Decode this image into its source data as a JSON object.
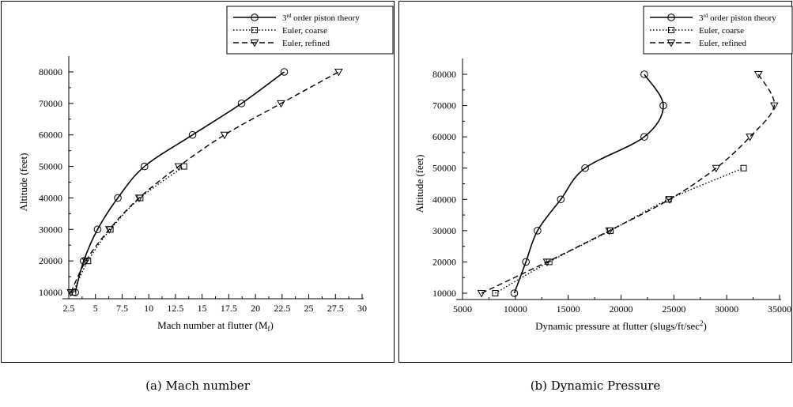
{
  "captions": {
    "a": "(a) Mach number",
    "b": "(b) Dynamic Pressure"
  },
  "chart_data": [
    {
      "type": "line",
      "xlabel": "Mach number at flutter (M",
      "xlabel_sub": "f",
      "xlabel_end": ")",
      "ylabel": "Altitude (feet)",
      "xlim": [
        2.5,
        30
      ],
      "ylim": [
        10000,
        80000
      ],
      "xticks": [
        2.5,
        5,
        7.5,
        10,
        12.5,
        15,
        17.5,
        20,
        22.5,
        25,
        27.5,
        30
      ],
      "xtick_labels": [
        "2.5",
        "5",
        "7.5",
        "10",
        "12.5",
        "15",
        "17.5",
        "20",
        "22.5",
        "25",
        "27.5",
        "30"
      ],
      "yticks": [
        10000,
        20000,
        30000,
        40000,
        50000,
        60000,
        70000,
        80000
      ],
      "ytick_labels": [
        "10000",
        "20000",
        "30000",
        "40000",
        "50000",
        "60000",
        "70000",
        "80000"
      ],
      "legend_position": "top-right",
      "series": [
        {
          "name": "3rd order piston theory",
          "legend": {
            "pre": "3",
            "sup": "rd",
            "post": " order piston theory"
          },
          "style": "solid",
          "marker": "circle",
          "points": [
            [
              3.1,
              10000
            ],
            [
              3.9,
              20000
            ],
            [
              5.2,
              30000
            ],
            [
              7.1,
              40000
            ],
            [
              9.6,
              50000
            ],
            [
              14.1,
              60000
            ],
            [
              18.7,
              70000
            ],
            [
              22.7,
              80000
            ]
          ]
        },
        {
          "name": "Euler, coarse",
          "legend": {
            "pre": "Euler, coarse",
            "sup": "",
            "post": ""
          },
          "style": "dotted",
          "marker": "square",
          "points": [
            [
              2.9,
              10000
            ],
            [
              4.3,
              20000
            ],
            [
              6.4,
              30000
            ],
            [
              9.2,
              40000
            ],
            [
              13.3,
              50000
            ]
          ]
        },
        {
          "name": "Euler, refined",
          "legend": {
            "pre": "Euler, refined",
            "sup": "",
            "post": ""
          },
          "style": "dashed",
          "marker": "triangle-down",
          "points": [
            [
              2.7,
              10000
            ],
            [
              4.1,
              20000
            ],
            [
              6.3,
              30000
            ],
            [
              9.1,
              40000
            ],
            [
              12.8,
              50000
            ],
            [
              17.1,
              60000
            ],
            [
              22.4,
              70000
            ],
            [
              27.8,
              80000
            ]
          ]
        }
      ]
    },
    {
      "type": "line",
      "xlabel": "Dynamic pressure at flutter (slugs/ft/sec",
      "xlabel_sup": "2",
      "xlabel_end": ")",
      "ylabel": "Altitude (feet)",
      "xlim": [
        5000,
        35000
      ],
      "ylim": [
        10000,
        80000
      ],
      "xticks": [
        5000,
        10000,
        15000,
        20000,
        25000,
        30000,
        35000
      ],
      "xtick_labels": [
        "5000",
        "10000",
        "15000",
        "20000",
        "25000",
        "30000",
        "35000"
      ],
      "yticks": [
        10000,
        20000,
        30000,
        40000,
        50000,
        60000,
        70000,
        80000
      ],
      "ytick_labels": [
        "10000",
        "20000",
        "30000",
        "40000",
        "50000",
        "60000",
        "70000",
        "80000"
      ],
      "legend_position": "top-right",
      "series": [
        {
          "name": "3rd order piston theory",
          "legend": {
            "pre": "3",
            "sup": "rd",
            "post": " order piston theory"
          },
          "style": "solid",
          "marker": "circle",
          "points": [
            [
              9900,
              10000
            ],
            [
              11000,
              20000
            ],
            [
              12100,
              30000
            ],
            [
              14300,
              40000
            ],
            [
              16600,
              50000
            ],
            [
              22200,
              60000
            ],
            [
              24000,
              70000
            ],
            [
              22200,
              80000
            ]
          ]
        },
        {
          "name": "Euler, coarse",
          "legend": {
            "pre": "Euler, coarse",
            "sup": "",
            "post": ""
          },
          "style": "dotted",
          "marker": "square",
          "points": [
            [
              8100,
              10000
            ],
            [
              13200,
              20000
            ],
            [
              19000,
              30000
            ],
            [
              24500,
              40000
            ],
            [
              31600,
              50000
            ]
          ]
        },
        {
          "name": "Euler, refined",
          "legend": {
            "pre": "Euler, refined",
            "sup": "",
            "post": ""
          },
          "style": "dashed",
          "marker": "triangle-down",
          "points": [
            [
              6800,
              10000
            ],
            [
              13000,
              20000
            ],
            [
              18900,
              30000
            ],
            [
              24600,
              40000
            ],
            [
              29000,
              50000
            ],
            [
              32200,
              60000
            ],
            [
              34500,
              70000
            ],
            [
              33000,
              80000
            ]
          ]
        }
      ]
    }
  ]
}
